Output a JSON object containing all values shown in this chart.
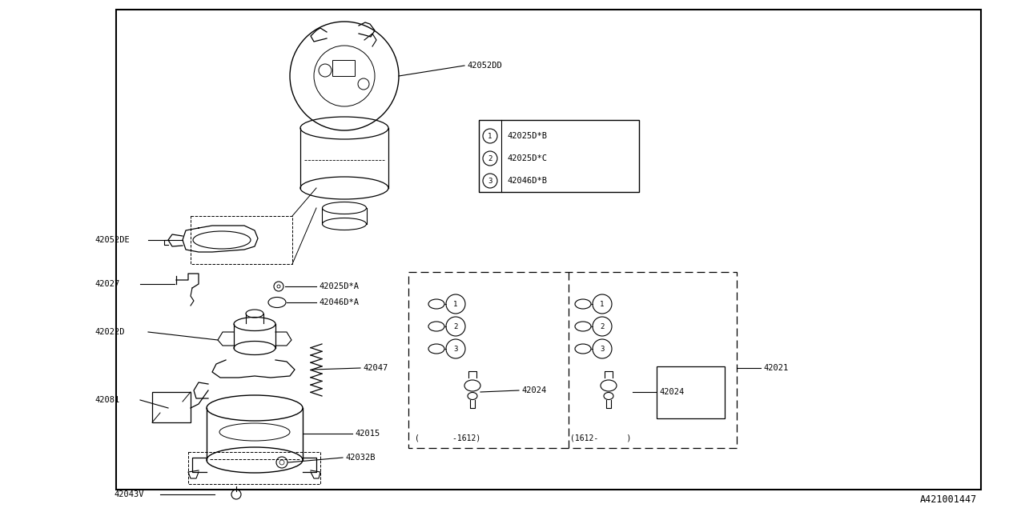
{
  "bg_color": "#ffffff",
  "line_color": "#000000",
  "watermark": "A421001447",
  "font_size": 7.5,
  "legend_items": [
    {
      "num": "1",
      "text": "42025D*B"
    },
    {
      "num": "2",
      "text": "42025D*C"
    },
    {
      "num": "3",
      "text": "42046D*B"
    }
  ]
}
